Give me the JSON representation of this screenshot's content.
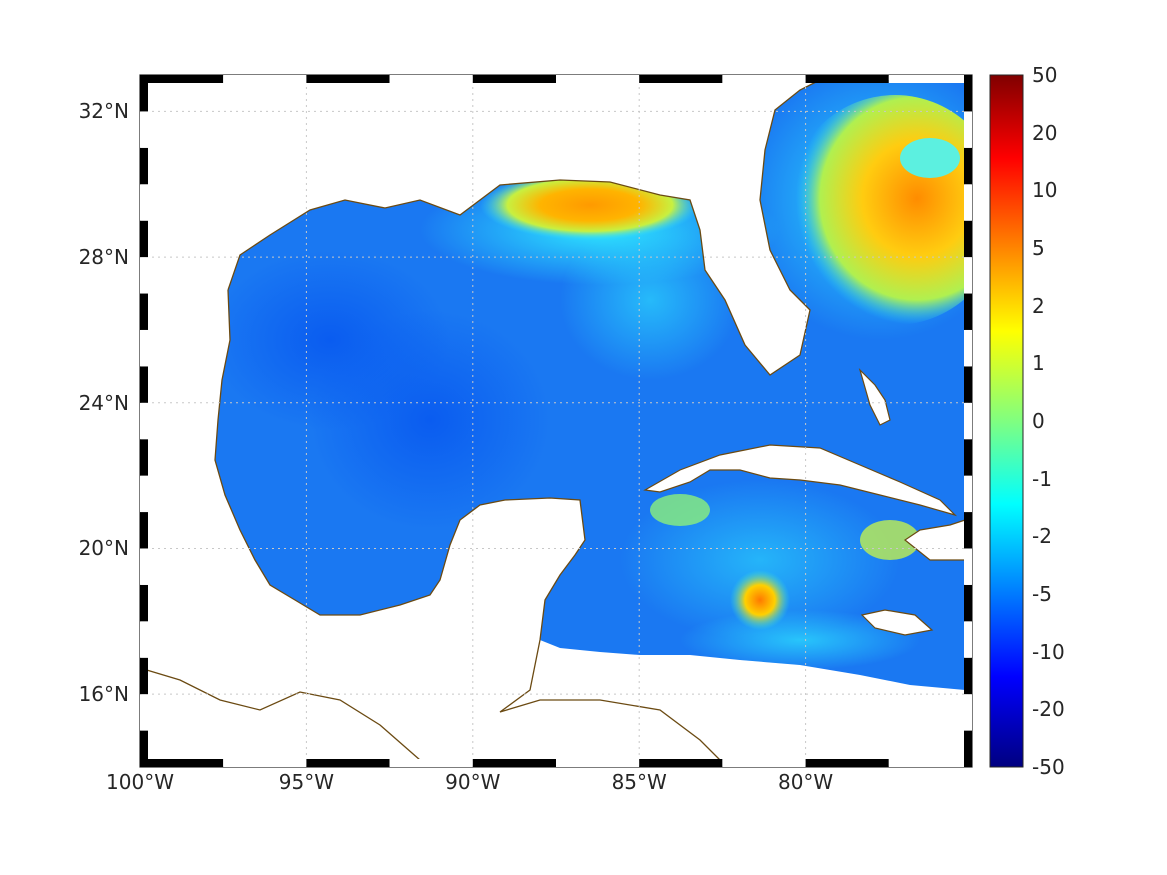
{
  "map": {
    "lon_range": [
      -100,
      -75
    ],
    "lat_range": [
      14,
      33
    ],
    "lat_ticks": [
      {
        "value": 32,
        "label": "32°N"
      },
      {
        "value": 28,
        "label": "28°N"
      },
      {
        "value": 24,
        "label": "24°N"
      },
      {
        "value": 20,
        "label": "20°N"
      },
      {
        "value": 16,
        "label": "16°N"
      }
    ],
    "lon_ticks": [
      {
        "value": -100,
        "label": "100°W"
      },
      {
        "value": -95,
        "label": "95°W"
      },
      {
        "value": -90,
        "label": "90°W"
      },
      {
        "value": -85,
        "label": "85°W"
      },
      {
        "value": -80,
        "label": "80°W"
      }
    ],
    "grid": true,
    "colormap": "jet",
    "coastline_color": "#6b4a12",
    "frame_colors": [
      "#000000",
      "#ffffff"
    ]
  },
  "colorbar": {
    "placement": "right",
    "ticks": [
      "50",
      "20",
      "10",
      "5",
      "2",
      "1",
      "0",
      "-1",
      "-2",
      "-5",
      "-10",
      "-20",
      "-50"
    ]
  }
}
